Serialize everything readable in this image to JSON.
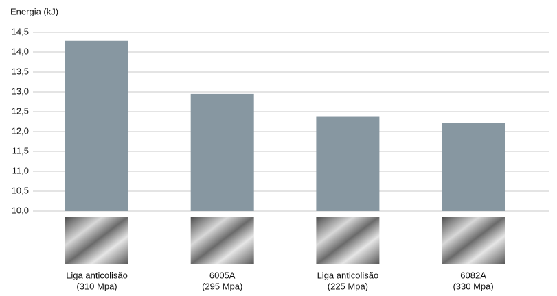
{
  "chart_data": {
    "type": "bar",
    "y_label": "Energia (kJ)",
    "categories": [
      [
        "Liga anticolisão",
        "(310 Mpa)"
      ],
      [
        "6005A",
        "(295 Mpa)"
      ],
      [
        "Liga anticolisão",
        "(225 Mpa)"
      ],
      [
        "6082A",
        "(330 Mpa)"
      ]
    ],
    "values": [
      14.28,
      12.95,
      12.37,
      12.21
    ],
    "color": "#8797a1",
    "ylim": [
      10,
      14.5
    ],
    "yticks": [
      {
        "value": 10,
        "label": "10,0"
      },
      {
        "value": 10.5,
        "label": "10,5"
      },
      {
        "value": 11,
        "label": "11,0"
      },
      {
        "value": 11.5,
        "label": "11,5"
      },
      {
        "value": 12,
        "label": "12,0"
      },
      {
        "value": 12.5,
        "label": "12,5"
      },
      {
        "value": 13,
        "label": "13,0"
      },
      {
        "value": 13.5,
        "label": "13,5"
      },
      {
        "value": 14,
        "label": "14,0"
      },
      {
        "value": 14.5,
        "label": "14,5"
      }
    ],
    "grid": true
  }
}
